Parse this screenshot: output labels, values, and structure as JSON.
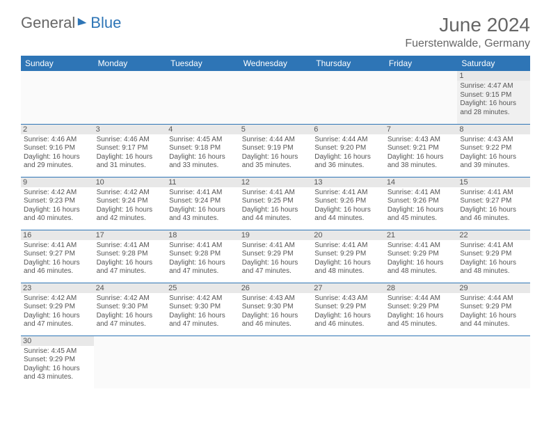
{
  "brand": {
    "part1": "General",
    "part2": "Blue"
  },
  "header": {
    "month_year": "June 2024",
    "location": "Fuerstenwalde, Germany"
  },
  "style": {
    "header_bg": "#2e75b6",
    "header_fg": "#ffffff",
    "daynum_bg": "#e8e8e8",
    "row_border": "#2e75b6",
    "text_color": "#555555",
    "cell_fontsize": 10,
    "header_fontsize": 12
  },
  "weekdays": [
    "Sunday",
    "Monday",
    "Tuesday",
    "Wednesday",
    "Thursday",
    "Friday",
    "Saturday"
  ],
  "labels": {
    "sunrise": "Sunrise:",
    "sunset": "Sunset:",
    "daylight": "Daylight:"
  },
  "weeks": [
    [
      null,
      null,
      null,
      null,
      null,
      null,
      {
        "day": 1,
        "sunrise": "4:47 AM",
        "sunset": "9:15 PM",
        "daylight": "16 hours and 28 minutes."
      }
    ],
    [
      {
        "day": 2,
        "sunrise": "4:46 AM",
        "sunset": "9:16 PM",
        "daylight": "16 hours and 29 minutes."
      },
      {
        "day": 3,
        "sunrise": "4:46 AM",
        "sunset": "9:17 PM",
        "daylight": "16 hours and 31 minutes."
      },
      {
        "day": 4,
        "sunrise": "4:45 AM",
        "sunset": "9:18 PM",
        "daylight": "16 hours and 33 minutes."
      },
      {
        "day": 5,
        "sunrise": "4:44 AM",
        "sunset": "9:19 PM",
        "daylight": "16 hours and 35 minutes."
      },
      {
        "day": 6,
        "sunrise": "4:44 AM",
        "sunset": "9:20 PM",
        "daylight": "16 hours and 36 minutes."
      },
      {
        "day": 7,
        "sunrise": "4:43 AM",
        "sunset": "9:21 PM",
        "daylight": "16 hours and 38 minutes."
      },
      {
        "day": 8,
        "sunrise": "4:43 AM",
        "sunset": "9:22 PM",
        "daylight": "16 hours and 39 minutes."
      }
    ],
    [
      {
        "day": 9,
        "sunrise": "4:42 AM",
        "sunset": "9:23 PM",
        "daylight": "16 hours and 40 minutes."
      },
      {
        "day": 10,
        "sunrise": "4:42 AM",
        "sunset": "9:24 PM",
        "daylight": "16 hours and 42 minutes."
      },
      {
        "day": 11,
        "sunrise": "4:41 AM",
        "sunset": "9:24 PM",
        "daylight": "16 hours and 43 minutes."
      },
      {
        "day": 12,
        "sunrise": "4:41 AM",
        "sunset": "9:25 PM",
        "daylight": "16 hours and 44 minutes."
      },
      {
        "day": 13,
        "sunrise": "4:41 AM",
        "sunset": "9:26 PM",
        "daylight": "16 hours and 44 minutes."
      },
      {
        "day": 14,
        "sunrise": "4:41 AM",
        "sunset": "9:26 PM",
        "daylight": "16 hours and 45 minutes."
      },
      {
        "day": 15,
        "sunrise": "4:41 AM",
        "sunset": "9:27 PM",
        "daylight": "16 hours and 46 minutes."
      }
    ],
    [
      {
        "day": 16,
        "sunrise": "4:41 AM",
        "sunset": "9:27 PM",
        "daylight": "16 hours and 46 minutes."
      },
      {
        "day": 17,
        "sunrise": "4:41 AM",
        "sunset": "9:28 PM",
        "daylight": "16 hours and 47 minutes."
      },
      {
        "day": 18,
        "sunrise": "4:41 AM",
        "sunset": "9:28 PM",
        "daylight": "16 hours and 47 minutes."
      },
      {
        "day": 19,
        "sunrise": "4:41 AM",
        "sunset": "9:29 PM",
        "daylight": "16 hours and 47 minutes."
      },
      {
        "day": 20,
        "sunrise": "4:41 AM",
        "sunset": "9:29 PM",
        "daylight": "16 hours and 48 minutes."
      },
      {
        "day": 21,
        "sunrise": "4:41 AM",
        "sunset": "9:29 PM",
        "daylight": "16 hours and 48 minutes."
      },
      {
        "day": 22,
        "sunrise": "4:41 AM",
        "sunset": "9:29 PM",
        "daylight": "16 hours and 48 minutes."
      }
    ],
    [
      {
        "day": 23,
        "sunrise": "4:42 AM",
        "sunset": "9:29 PM",
        "daylight": "16 hours and 47 minutes."
      },
      {
        "day": 24,
        "sunrise": "4:42 AM",
        "sunset": "9:30 PM",
        "daylight": "16 hours and 47 minutes."
      },
      {
        "day": 25,
        "sunrise": "4:42 AM",
        "sunset": "9:30 PM",
        "daylight": "16 hours and 47 minutes."
      },
      {
        "day": 26,
        "sunrise": "4:43 AM",
        "sunset": "9:30 PM",
        "daylight": "16 hours and 46 minutes."
      },
      {
        "day": 27,
        "sunrise": "4:43 AM",
        "sunset": "9:29 PM",
        "daylight": "16 hours and 46 minutes."
      },
      {
        "day": 28,
        "sunrise": "4:44 AM",
        "sunset": "9:29 PM",
        "daylight": "16 hours and 45 minutes."
      },
      {
        "day": 29,
        "sunrise": "4:44 AM",
        "sunset": "9:29 PM",
        "daylight": "16 hours and 44 minutes."
      }
    ],
    [
      {
        "day": 30,
        "sunrise": "4:45 AM",
        "sunset": "9:29 PM",
        "daylight": "16 hours and 43 minutes."
      },
      null,
      null,
      null,
      null,
      null,
      null
    ]
  ]
}
